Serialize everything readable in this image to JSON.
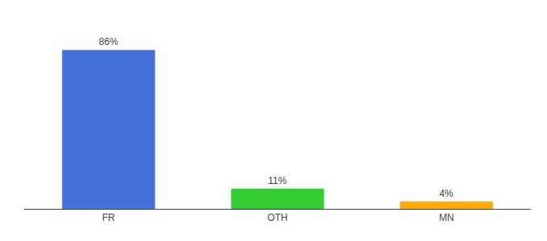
{
  "chart_data": {
    "type": "bar",
    "categories": [
      "FR",
      "OTH",
      "MN"
    ],
    "values": [
      86,
      11,
      4
    ],
    "value_labels": [
      "86%",
      "11%",
      "4%"
    ],
    "colors": [
      "#4472db",
      "#33cc33",
      "#ffaa00"
    ],
    "ylim": [
      0,
      100
    ],
    "tick_labels": "x",
    "grid": false,
    "data_labels": true
  }
}
